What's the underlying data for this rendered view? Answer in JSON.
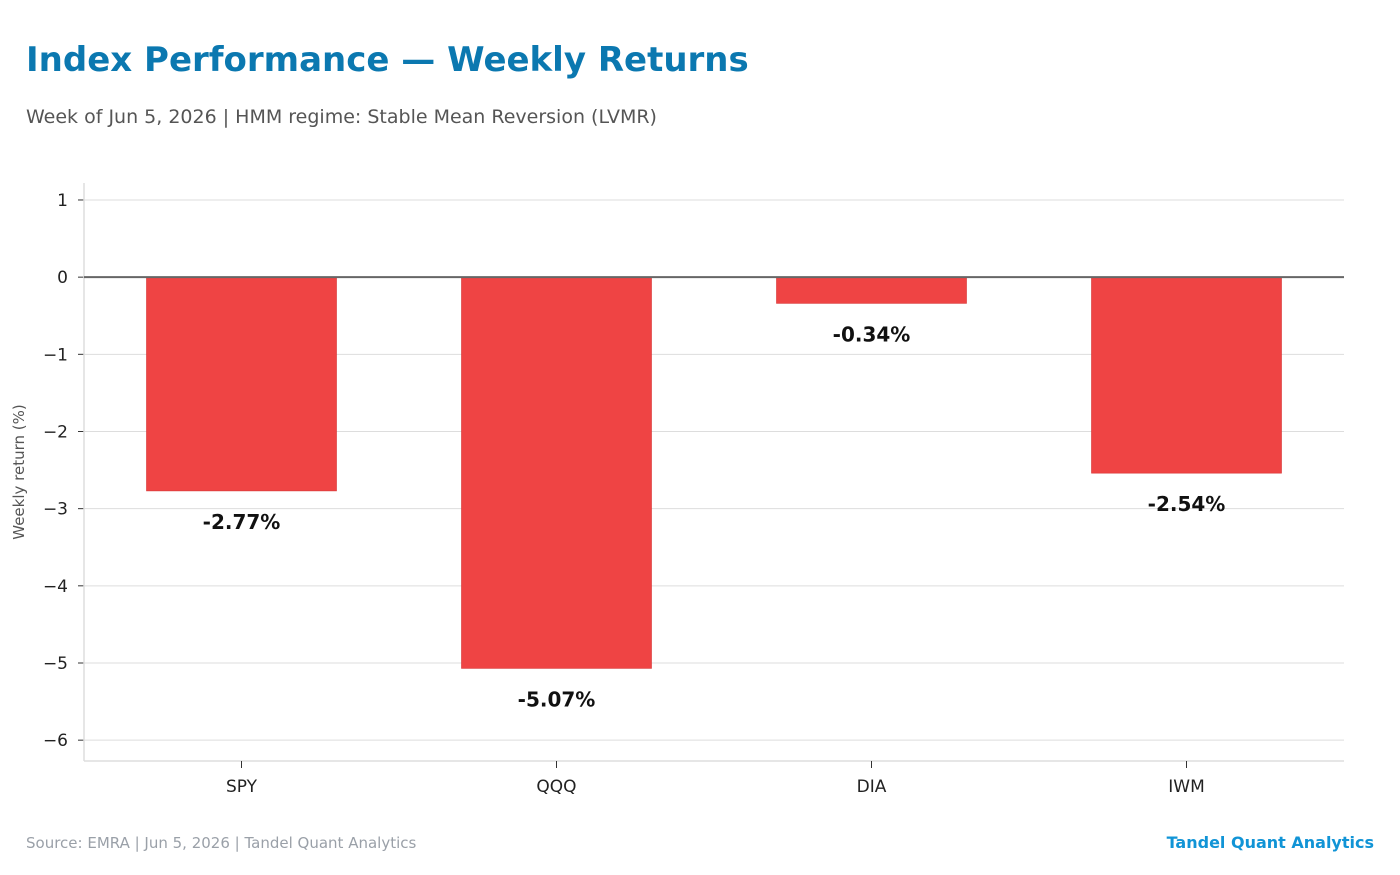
{
  "header": {
    "title": "Index Performance — Weekly Returns",
    "subtitle": "Week of Jun 5, 2026 | HMM regime: Stable Mean Reversion (LVMR)"
  },
  "footer": {
    "source": "Source: EMRA | Jun 5, 2026 | Tandel Quant Analytics",
    "brand": "Tandel Quant Analytics"
  },
  "colors": {
    "bar": "#ef4444",
    "title": "#0b78b0",
    "brand": "#1194d6",
    "grid": "#dddddd",
    "zero_line": "#666666"
  },
  "chart_data": {
    "type": "bar",
    "categories": [
      "SPY",
      "QQQ",
      "DIA",
      "IWM"
    ],
    "values": [
      -2.77,
      -5.07,
      -0.34,
      -2.54
    ],
    "data_labels": [
      "-2.77%",
      "-5.07%",
      "-0.34%",
      "-2.54%"
    ],
    "title": "Index Performance — Weekly Returns",
    "subtitle": "Week of Jun 5, 2026 | HMM regime: Stable Mean Reversion (LVMR)",
    "xlabel": "",
    "ylabel": "Weekly return (%)",
    "ylim": [
      -6.27,
      1.22
    ],
    "yticks": [
      1,
      0,
      -1,
      -2,
      -3,
      -4,
      -5,
      -6
    ],
    "ytick_labels": [
      "1",
      "0",
      "−1",
      "−2",
      "−3",
      "−4",
      "−5",
      "−6"
    ],
    "grid": true,
    "legend": "none"
  }
}
